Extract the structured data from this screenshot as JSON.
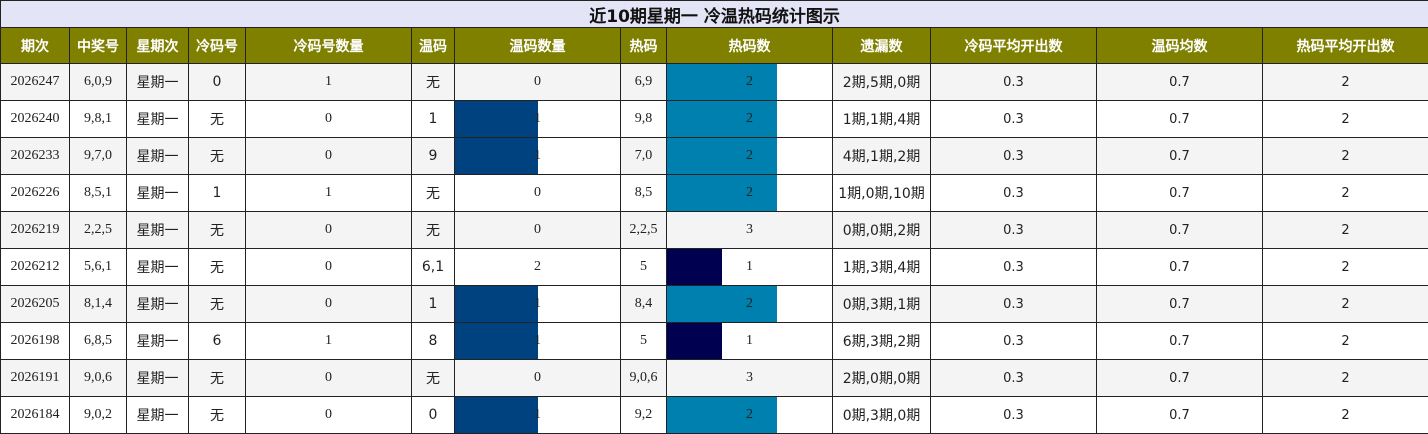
{
  "title": "近10期星期一 冷温热码统计图示",
  "headers": [
    "期次",
    "中奖号",
    "星期次",
    "冷码号",
    "冷码号数量",
    "温码",
    "温码数量",
    "热码",
    "热码数",
    "遗漏数",
    "冷码平均开出数",
    "温码均数",
    "热码平均开出数"
  ],
  "colors": {
    "header_bg": "#808000",
    "title_bg": "#e4e4f7",
    "warm_bar": "#00427f",
    "hot_bar_2": "#0080ae",
    "hot_bar_1": "#000050",
    "row_alt": "#f4f4f4"
  },
  "bar_scale_max": {
    "warm_count": 2,
    "hot_count": 3
  },
  "rows": [
    {
      "issue": "2026247",
      "numbers": "6,0,9",
      "weekday": "星期一",
      "cold": "0",
      "cold_count": 1,
      "warm": "无",
      "warm_count": 0,
      "hot": "6,9",
      "hot_count": 2,
      "miss": "2期,5期,0期",
      "cold_avg": "0.3",
      "warm_avg": "0.7",
      "hot_avg": "2"
    },
    {
      "issue": "2026240",
      "numbers": "9,8,1",
      "weekday": "星期一",
      "cold": "无",
      "cold_count": 0,
      "warm": "1",
      "warm_count": 1,
      "hot": "9,8",
      "hot_count": 2,
      "miss": "1期,1期,4期",
      "cold_avg": "0.3",
      "warm_avg": "0.7",
      "hot_avg": "2"
    },
    {
      "issue": "2026233",
      "numbers": "9,7,0",
      "weekday": "星期一",
      "cold": "无",
      "cold_count": 0,
      "warm": "9",
      "warm_count": 1,
      "hot": "7,0",
      "hot_count": 2,
      "miss": "4期,1期,2期",
      "cold_avg": "0.3",
      "warm_avg": "0.7",
      "hot_avg": "2"
    },
    {
      "issue": "2026226",
      "numbers": "8,5,1",
      "weekday": "星期一",
      "cold": "1",
      "cold_count": 1,
      "warm": "无",
      "warm_count": 0,
      "hot": "8,5",
      "hot_count": 2,
      "miss": "1期,0期,10期",
      "cold_avg": "0.3",
      "warm_avg": "0.7",
      "hot_avg": "2"
    },
    {
      "issue": "2026219",
      "numbers": "2,2,5",
      "weekday": "星期一",
      "cold": "无",
      "cold_count": 0,
      "warm": "无",
      "warm_count": 0,
      "hot": "2,2,5",
      "hot_count": 3,
      "miss": "0期,0期,2期",
      "cold_avg": "0.3",
      "warm_avg": "0.7",
      "hot_avg": "2"
    },
    {
      "issue": "2026212",
      "numbers": "5,6,1",
      "weekday": "星期一",
      "cold": "无",
      "cold_count": 0,
      "warm": "6,1",
      "warm_count": 2,
      "hot": "5",
      "hot_count": 1,
      "miss": "1期,3期,4期",
      "cold_avg": "0.3",
      "warm_avg": "0.7",
      "hot_avg": "2"
    },
    {
      "issue": "2026205",
      "numbers": "8,1,4",
      "weekday": "星期一",
      "cold": "无",
      "cold_count": 0,
      "warm": "1",
      "warm_count": 1,
      "hot": "8,4",
      "hot_count": 2,
      "miss": "0期,3期,1期",
      "cold_avg": "0.3",
      "warm_avg": "0.7",
      "hot_avg": "2"
    },
    {
      "issue": "2026198",
      "numbers": "6,8,5",
      "weekday": "星期一",
      "cold": "6",
      "cold_count": 1,
      "warm": "8",
      "warm_count": 1,
      "hot": "5",
      "hot_count": 1,
      "miss": "6期,3期,2期",
      "cold_avg": "0.3",
      "warm_avg": "0.7",
      "hot_avg": "2"
    },
    {
      "issue": "2026191",
      "numbers": "9,0,6",
      "weekday": "星期一",
      "cold": "无",
      "cold_count": 0,
      "warm": "无",
      "warm_count": 0,
      "hot": "9,0,6",
      "hot_count": 3,
      "miss": "2期,0期,0期",
      "cold_avg": "0.3",
      "warm_avg": "0.7",
      "hot_avg": "2"
    },
    {
      "issue": "2026184",
      "numbers": "9,0,2",
      "weekday": "星期一",
      "cold": "无",
      "cold_count": 0,
      "warm": "0",
      "warm_count": 1,
      "hot": "9,2",
      "hot_count": 2,
      "miss": "0期,3期,0期",
      "cold_avg": "0.3",
      "warm_avg": "0.7",
      "hot_avg": "2"
    }
  ]
}
